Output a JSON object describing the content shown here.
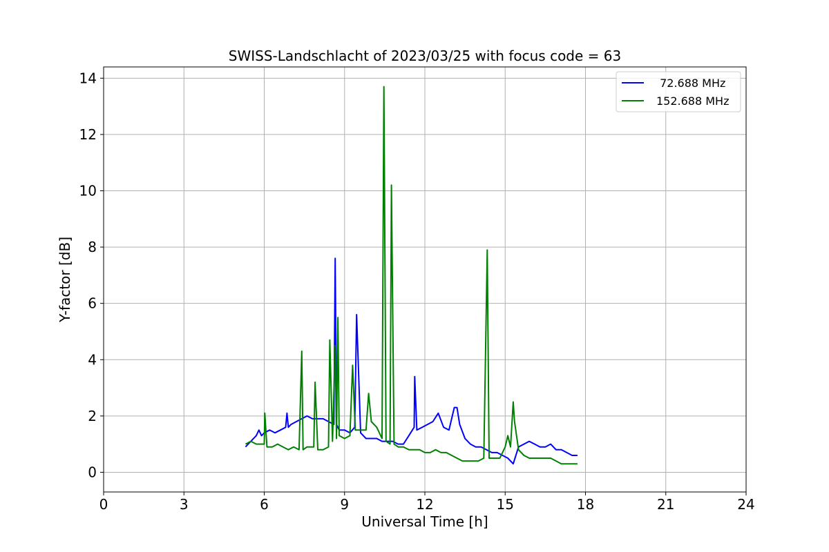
{
  "chart_data": {
    "type": "line",
    "title": "SWISS-Landschlacht of 2023/03/25 with focus code = 63",
    "xlabel": "Universal Time [h]",
    "ylabel": "Y-factor [dB]",
    "xlim": [
      0,
      24
    ],
    "ylim": [
      -0.7,
      14.4
    ],
    "xticks": [
      0,
      3,
      6,
      9,
      12,
      15,
      18,
      21,
      24
    ],
    "yticks": [
      0,
      2,
      4,
      6,
      8,
      10,
      12,
      14
    ],
    "grid": true,
    "legend_position": "upper-right",
    "series": [
      {
        "name": " 72.688 MHz",
        "color": "#0000ff",
        "x": [
          5.3,
          5.5,
          5.7,
          5.8,
          5.9,
          6.0,
          6.2,
          6.4,
          6.6,
          6.8,
          6.85,
          6.9,
          7.0,
          7.2,
          7.4,
          7.6,
          7.8,
          8.0,
          8.2,
          8.4,
          8.6,
          8.65,
          8.7,
          8.8,
          9.0,
          9.2,
          9.38,
          9.45,
          9.6,
          9.8,
          10.0,
          10.2,
          10.4,
          10.6,
          10.8,
          11.0,
          11.2,
          11.4,
          11.6,
          11.62,
          11.7,
          11.9,
          12.1,
          12.3,
          12.5,
          12.7,
          12.9,
          13.1,
          13.2,
          13.3,
          13.5,
          13.7,
          13.9,
          14.1,
          14.3,
          14.5,
          14.7,
          14.9,
          15.1,
          15.3,
          15.5,
          15.7,
          15.9,
          16.1,
          16.3,
          16.5,
          16.7,
          16.9,
          17.1,
          17.3,
          17.5,
          17.7
        ],
        "y": [
          0.9,
          1.1,
          1.3,
          1.5,
          1.3,
          1.4,
          1.5,
          1.4,
          1.5,
          1.6,
          2.1,
          1.6,
          1.7,
          1.8,
          1.9,
          2.0,
          1.9,
          1.9,
          1.9,
          1.8,
          1.7,
          7.6,
          1.7,
          1.5,
          1.5,
          1.4,
          1.6,
          5.6,
          1.4,
          1.2,
          1.2,
          1.2,
          1.1,
          1.1,
          1.1,
          1.0,
          1.0,
          1.3,
          1.6,
          3.4,
          1.5,
          1.6,
          1.7,
          1.8,
          2.1,
          1.6,
          1.5,
          2.3,
          2.3,
          1.7,
          1.2,
          1.0,
          0.9,
          0.9,
          0.8,
          0.7,
          0.7,
          0.6,
          0.5,
          0.3,
          0.9,
          1.0,
          1.1,
          1.0,
          0.9,
          0.9,
          1.0,
          0.8,
          0.8,
          0.7,
          0.6,
          0.6
        ]
      },
      {
        "name": "152.688 MHz",
        "color": "#008000",
        "x": [
          5.3,
          5.5,
          5.7,
          5.9,
          6.0,
          6.02,
          6.1,
          6.3,
          6.5,
          6.7,
          6.9,
          7.1,
          7.3,
          7.4,
          7.45,
          7.6,
          7.85,
          7.9,
          8.0,
          8.2,
          8.4,
          8.45,
          8.55,
          8.65,
          8.7,
          8.75,
          8.8,
          9.0,
          9.2,
          9.3,
          9.4,
          9.6,
          9.8,
          9.9,
          10.0,
          10.2,
          10.4,
          10.47,
          10.55,
          10.7,
          10.75,
          10.85,
          11.0,
          11.2,
          11.4,
          11.6,
          11.8,
          12.0,
          12.2,
          12.4,
          12.6,
          12.8,
          13.0,
          13.2,
          13.4,
          13.6,
          13.8,
          14.0,
          14.2,
          14.33,
          14.4,
          14.6,
          14.8,
          15.0,
          15.1,
          15.2,
          15.3,
          15.35,
          15.5,
          15.7,
          15.9,
          16.1,
          16.3,
          16.5,
          16.7,
          16.9,
          17.1,
          17.3,
          17.5,
          17.7
        ],
        "y": [
          1.0,
          1.1,
          1.0,
          1.0,
          1.0,
          2.1,
          0.9,
          0.9,
          1.0,
          0.9,
          0.8,
          0.9,
          0.8,
          4.3,
          0.8,
          0.9,
          0.9,
          3.2,
          0.8,
          0.8,
          0.9,
          4.7,
          1.1,
          4.5,
          1.2,
          5.5,
          1.3,
          1.2,
          1.3,
          3.8,
          1.5,
          1.5,
          1.5,
          2.8,
          1.8,
          1.6,
          1.2,
          13.7,
          1.1,
          1.0,
          10.2,
          1.0,
          0.9,
          0.9,
          0.8,
          0.8,
          0.8,
          0.7,
          0.7,
          0.8,
          0.7,
          0.7,
          0.6,
          0.5,
          0.4,
          0.4,
          0.4,
          0.4,
          0.5,
          7.9,
          0.5,
          0.5,
          0.5,
          0.9,
          1.3,
          0.9,
          2.5,
          1.8,
          0.8,
          0.6,
          0.5,
          0.5,
          0.5,
          0.5,
          0.5,
          0.4,
          0.3,
          0.3,
          0.3,
          0.3
        ]
      }
    ]
  }
}
